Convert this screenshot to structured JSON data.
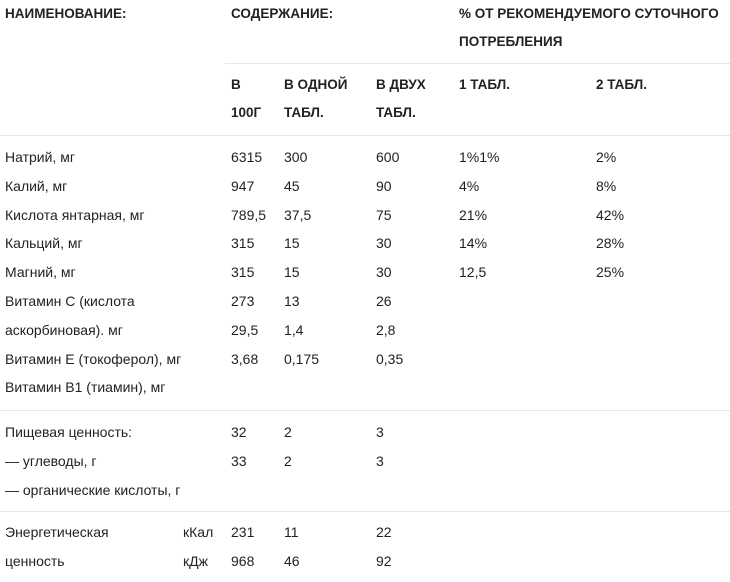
{
  "header": {
    "name": "НАИМЕНОВАНИЕ:",
    "content": "СОДЕРЖАНИЕ:",
    "percent": [
      "% ОТ РЕКОМЕНДУЕМОГО СУТОЧНОГО",
      "ПОТРЕБЛЕНИЯ"
    ],
    "sub": [
      [
        "В",
        "100Г"
      ],
      [
        "В ОДНОЙ",
        "ТАБЛ."
      ],
      [
        "В ДВУХ",
        "ТАБЛ."
      ],
      [
        "1 ТАБЛ."
      ],
      [
        "2 ТАБЛ."
      ]
    ]
  },
  "sections": [
    {
      "rows": [
        {
          "name": "Натрий, мг",
          "values": [
            "6315",
            "300",
            "600",
            "1%1%",
            "2%"
          ]
        },
        {
          "name": "Калий, мг",
          "values": [
            "947",
            "45",
            "90",
            "4%",
            "8%"
          ]
        },
        {
          "name": "Кислота янтарная, мг",
          "values": [
            "789,5",
            "37,5",
            "75",
            "21%",
            "42%"
          ]
        },
        {
          "name": "Кальций, мг",
          "values": [
            "315",
            "15",
            "30",
            "14%",
            "28%"
          ]
        },
        {
          "name": "Магний, мг",
          "values": [
            "315",
            "15",
            "30",
            "12,5",
            "25%"
          ]
        },
        {
          "name": "Витамин С (кислота",
          "values": [
            "273",
            "13",
            "26"
          ]
        },
        {
          "name": "аскорбиновая). мг",
          "values": [
            "29,5",
            "1,4",
            "2,8"
          ]
        },
        {
          "name": "Витамин Е (токоферол), мг",
          "values": [
            "3,68",
            "0,175",
            "0,35"
          ]
        },
        {
          "name": "Витамин В1 (тиамин), мг",
          "values": []
        }
      ]
    },
    {
      "rows": [
        {
          "name": "Пищевая ценность:",
          "values": [
            "32",
            "2",
            "3"
          ]
        },
        {
          "name": "— углеводы, г",
          "values": [
            "33",
            "2",
            "3"
          ]
        },
        {
          "name": "— органические кислоты, г",
          "values": []
        }
      ]
    },
    {
      "rows": [
        {
          "name": "Энергетическая",
          "unit": "кКал",
          "values": [
            "231",
            "11",
            "22"
          ]
        },
        {
          "name": "ценность",
          "unit": "кДж",
          "values": [
            "968",
            "46",
            "92"
          ]
        }
      ]
    }
  ]
}
